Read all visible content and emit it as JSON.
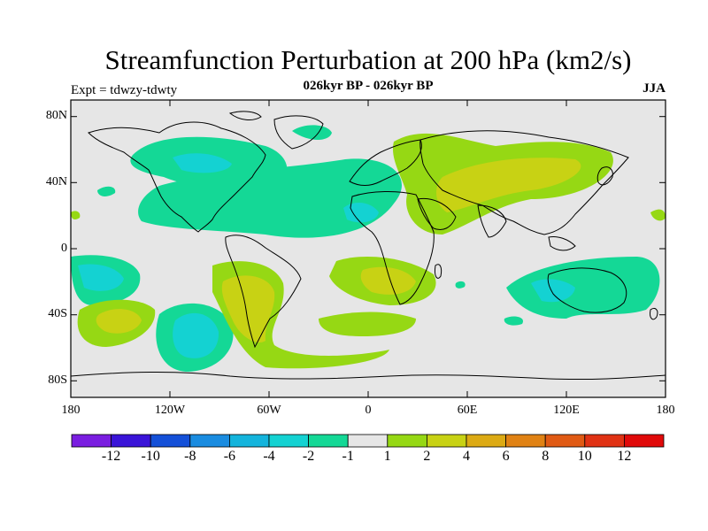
{
  "title": "Streamfunction Perturbation at 200 hPa (km2/s)",
  "subtitle": "026kyr BP - 026kyr BP",
  "experiment_label": "Expt = tdwzy-tdwty",
  "season": "JJA",
  "latitude_ticks": [
    "80N",
    "40N",
    "0",
    "40S",
    "80S"
  ],
  "longitude_ticks": [
    "180",
    "120W",
    "60W",
    "0",
    "60E",
    "120E",
    "180"
  ],
  "colorbar": {
    "colors": [
      "#7a1ee0",
      "#3a14d8",
      "#1450d8",
      "#1a8ce0",
      "#14b4dc",
      "#14d2d2",
      "#14d896",
      "#e6e6e6",
      "#96d814",
      "#c8d214",
      "#dcaa14",
      "#e08214",
      "#e05a14",
      "#e03214",
      "#e00a0a"
    ],
    "labels": [
      "-12",
      "-10",
      "-8",
      "-6",
      "-4",
      "-2",
      "-1",
      "1",
      "2",
      "4",
      "6",
      "8",
      "10",
      "12"
    ]
  },
  "field_colors": {
    "background": "#e6e6e6",
    "pos1": "#96d814",
    "pos2": "#c8d214",
    "neg1": "#14d896",
    "neg2": "#14d2d2"
  }
}
